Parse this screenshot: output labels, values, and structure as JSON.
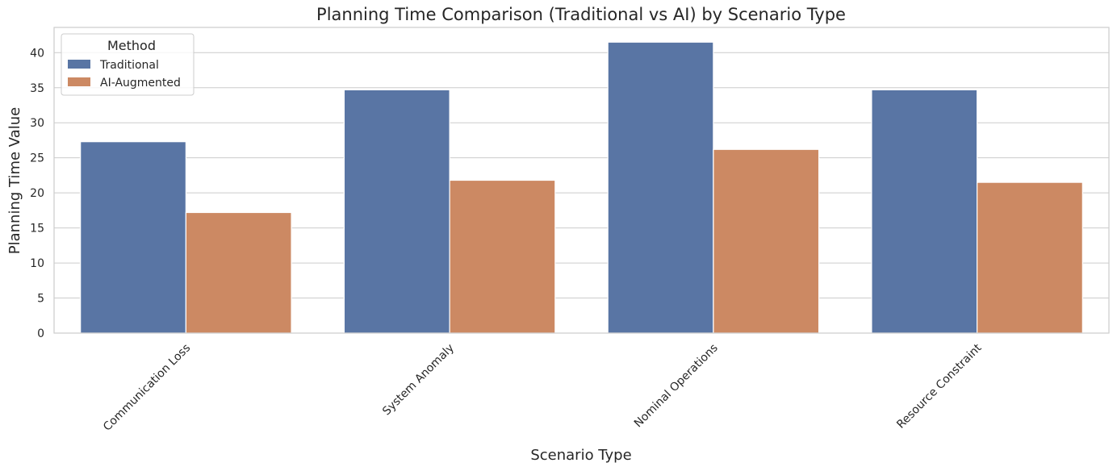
{
  "chart_data": {
    "type": "bar",
    "title": "Planning Time Comparison (Traditional vs AI) by Scenario Type",
    "xlabel": "Scenario Type",
    "ylabel": "Planning Time Value",
    "categories": [
      "Communication Loss",
      "System Anomaly",
      "Nominal Operations",
      "Resource Constraint"
    ],
    "series": [
      {
        "name": "Traditional",
        "color": "#5975a4",
        "values": [
          27.3,
          34.7,
          41.5,
          34.7
        ]
      },
      {
        "name": "AI-Augmented",
        "color": "#cc8963",
        "values": [
          17.2,
          21.8,
          26.2,
          21.5
        ]
      }
    ],
    "ylim": [
      0,
      43.6
    ],
    "yticks": [
      0,
      5,
      10,
      15,
      20,
      25,
      30,
      35,
      40
    ],
    "grid": true,
    "legend": {
      "title": "Method",
      "placement": "top-left"
    }
  }
}
